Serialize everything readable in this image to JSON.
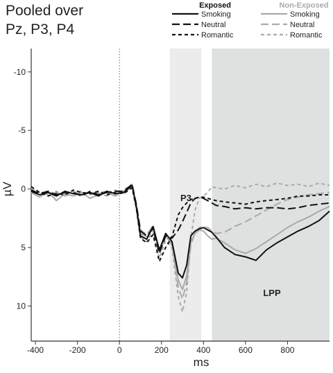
{
  "title_lines": [
    "Pooled over",
    "Pz, P3, P4"
  ],
  "chart_data": {
    "type": "line",
    "xlabel": "ms",
    "ylabel": "µV",
    "xlim": [
      -420,
      1000
    ],
    "ylim": [
      13,
      -12
    ],
    "y_inverted": true,
    "x_ticks": [
      -400,
      -200,
      0,
      200,
      400,
      600,
      800
    ],
    "x_tick_labels": [
      "-400",
      "-200",
      "0",
      "200",
      "400",
      "600",
      "800"
    ],
    "y_ticks": [
      -10,
      -5,
      0,
      5,
      10
    ],
    "y_tick_labels": [
      "-10",
      "-5",
      "0",
      "5",
      "10"
    ],
    "grid": false,
    "stimulus_onset_ms": 0,
    "windows": [
      {
        "label": "P3",
        "x_range": [
          240,
          390
        ],
        "color": "#ececec"
      },
      {
        "label": "LPP",
        "x_range": [
          440,
          1000
        ],
        "color": "#dfe1e1"
      }
    ],
    "legend": {
      "position": "top-right",
      "groups": [
        {
          "title": "Exposed",
          "color": "#111111",
          "items": [
            "Smoking",
            "Neutral",
            "Romantic"
          ]
        },
        {
          "title": "Non-Exposed",
          "color": "#aaaaaa",
          "items": [
            "Smoking",
            "Neutral",
            "Romantic"
          ]
        }
      ]
    },
    "x": [
      -420,
      -380,
      -340,
      -300,
      -260,
      -220,
      -180,
      -140,
      -100,
      -60,
      -20,
      20,
      60,
      80,
      100,
      130,
      160,
      190,
      220,
      250,
      280,
      300,
      320,
      340,
      360,
      380,
      400,
      420,
      440,
      460,
      500,
      550,
      600,
      650,
      700,
      750,
      800,
      850,
      900,
      950,
      1000
    ],
    "series": [
      {
        "group": "Exposed",
        "condition": "Smoking",
        "color": "#111111",
        "dash": "solid",
        "values": [
          0.2,
          0.5,
          0.3,
          0.6,
          0.2,
          0.4,
          0.5,
          0.3,
          0.6,
          0.2,
          0.4,
          0.3,
          -0.3,
          1.5,
          4.0,
          4.3,
          3.2,
          5.2,
          3.8,
          4.5,
          7.2,
          7.6,
          6.5,
          4.0,
          3.6,
          3.4,
          3.3,
          3.5,
          3.7,
          4.1,
          5.0,
          5.6,
          5.8,
          6.1,
          5.2,
          4.6,
          4.1,
          3.6,
          3.2,
          2.7,
          1.9
        ]
      },
      {
        "group": "Exposed",
        "condition": "Neutral",
        "color": "#111111",
        "dash": "long",
        "values": [
          0.1,
          0.4,
          0.2,
          0.5,
          0.3,
          0.3,
          0.6,
          0.2,
          0.5,
          0.3,
          0.2,
          0.2,
          -0.4,
          1.3,
          3.6,
          4.0,
          3.4,
          5.5,
          4.0,
          4.2,
          3.5,
          2.8,
          2.0,
          1.2,
          0.8,
          0.7,
          0.8,
          1.0,
          1.2,
          1.4,
          1.5,
          1.7,
          1.6,
          1.7,
          1.6,
          1.6,
          1.7,
          1.6,
          1.4,
          1.3,
          1.2
        ]
      },
      {
        "group": "Exposed",
        "condition": "Romantic",
        "color": "#111111",
        "dash": "short",
        "values": [
          -0.2,
          0.3,
          0.6,
          0.4,
          0.5,
          0.1,
          0.3,
          0.4,
          0.2,
          0.5,
          0.3,
          0.4,
          -0.1,
          1.6,
          4.2,
          4.6,
          3.9,
          6.2,
          5.0,
          4.1,
          2.2,
          1.6,
          1.2,
          0.9,
          0.8,
          0.7,
          0.7,
          0.8,
          0.9,
          1.0,
          1.1,
          1.2,
          1.3,
          1.1,
          1.0,
          0.9,
          0.8,
          0.6,
          0.6,
          0.5,
          0.5
        ]
      },
      {
        "group": "Non-Exposed",
        "condition": "Smoking",
        "color": "#a9a9a9",
        "dash": "solid",
        "values": [
          0.3,
          0.7,
          0.2,
          1.0,
          0.4,
          0.6,
          0.3,
          0.8,
          0.5,
          0.3,
          0.6,
          0.2,
          -0.2,
          1.4,
          3.8,
          4.1,
          3.3,
          5.3,
          4.0,
          4.8,
          7.8,
          8.6,
          7.4,
          4.5,
          3.8,
          3.5,
          3.6,
          4.0,
          4.3,
          4.2,
          4.6,
          5.2,
          5.5,
          5.1,
          4.5,
          3.9,
          3.3,
          2.8,
          2.4,
          1.9,
          1.5
        ]
      },
      {
        "group": "Non-Exposed",
        "condition": "Neutral",
        "color": "#a9a9a9",
        "dash": "long",
        "values": [
          0.4,
          0.2,
          0.5,
          0.3,
          0.6,
          0.2,
          0.5,
          0.3,
          0.4,
          0.6,
          0.1,
          0.4,
          -0.3,
          1.2,
          3.5,
          3.9,
          3.1,
          5.4,
          4.1,
          4.6,
          8.4,
          9.4,
          8.0,
          4.8,
          3.7,
          3.3,
          3.2,
          3.3,
          3.6,
          3.8,
          3.7,
          3.2,
          2.8,
          2.3,
          1.8,
          1.3,
          0.9,
          0.7,
          0.5,
          0.4,
          0.3
        ]
      },
      {
        "group": "Non-Exposed",
        "condition": "Romantic",
        "color": "#a9a9a9",
        "dash": "short",
        "values": [
          0.0,
          0.3,
          0.4,
          0.2,
          0.6,
          0.4,
          0.2,
          0.5,
          0.3,
          0.2,
          0.5,
          0.1,
          -0.4,
          1.5,
          4.1,
          4.5,
          3.6,
          5.9,
          4.4,
          5.0,
          9.2,
          10.5,
          8.8,
          4.2,
          1.8,
          0.8,
          0.6,
          0.3,
          -0.2,
          -0.1,
          0.0,
          -0.3,
          -0.1,
          -0.4,
          -0.2,
          -0.5,
          -0.3,
          -0.4,
          -0.2,
          -0.5,
          -0.3
        ]
      }
    ]
  }
}
